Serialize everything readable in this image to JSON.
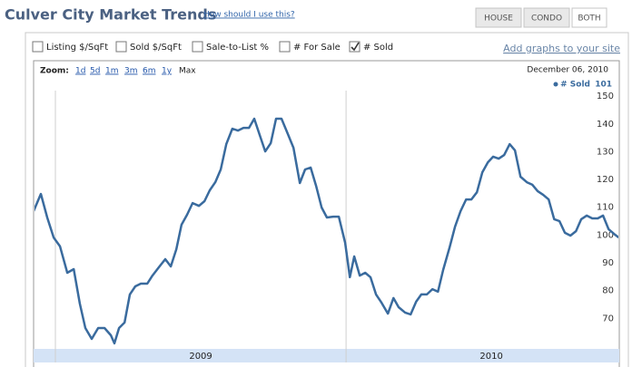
{
  "header": {
    "title": "Culver City Market Trends",
    "help_link": "How should I use this?",
    "tabs": [
      "HOUSE",
      "CONDO",
      "BOTH"
    ],
    "selected_tab": 2
  },
  "options": {
    "checkboxes": [
      {
        "label": "Listing $/SqFt",
        "checked": false
      },
      {
        "label": "Sold $/SqFt",
        "checked": false
      },
      {
        "label": "Sale-to-List %",
        "checked": false
      },
      {
        "label": "# For Sale",
        "checked": false
      },
      {
        "label": "# Sold",
        "checked": true
      }
    ],
    "embed_link": "Add graphs to your site"
  },
  "chart_data": {
    "type": "line",
    "zoom_label": "Zoom:",
    "zoom_options": [
      "1d",
      "5d",
      "1m",
      "3m",
      "6m",
      "1y",
      "Max"
    ],
    "date": "December 06, 2010",
    "current_value": 101,
    "x": [
      2008.925,
      2008.95,
      2008.972,
      2008.994,
      2009.016,
      2009.041,
      2009.063,
      2009.084,
      2009.103,
      2009.125,
      2009.147,
      2009.169,
      2009.191,
      2009.203,
      2009.219,
      2009.238,
      2009.256,
      2009.275,
      2009.294,
      2009.316,
      2009.334,
      2009.356,
      2009.378,
      2009.397,
      2009.416,
      2009.434,
      2009.453,
      2009.472,
      2009.494,
      2009.513,
      2009.531,
      2009.55,
      2009.569,
      2009.588,
      2009.609,
      2009.628,
      2009.647,
      2009.666,
      2009.684,
      2009.703,
      2009.722,
      2009.741,
      2009.759,
      2009.778,
      2009.8,
      2009.819,
      2009.841,
      2009.859,
      2009.878,
      2009.897,
      2009.916,
      2009.934,
      2009.956,
      2009.975,
      2009.997,
      2010.013,
      2010.028,
      2010.047,
      2010.066,
      2010.084,
      2010.103,
      2010.122,
      2010.144,
      2010.163,
      2010.181,
      2010.203,
      2010.222,
      2010.241,
      2010.259,
      2010.278,
      2010.297,
      2010.316,
      2010.334,
      2010.356,
      2010.375,
      2010.394,
      2010.413,
      2010.431,
      2010.45,
      2010.469,
      2010.488,
      2010.506,
      2010.525,
      2010.544,
      2010.563,
      2010.581,
      2010.6,
      2010.622,
      2010.641,
      2010.659,
      2010.678,
      2010.697,
      2010.716,
      2010.734,
      2010.753,
      2010.772,
      2010.791,
      2010.809,
      2010.828,
      2010.847,
      2010.866,
      2010.884,
      2010.903,
      2010.922,
      2010.938
    ],
    "series": [
      {
        "name": "# Sold",
        "color": "#3a6b9e",
        "values": [
          108.6,
          114.8,
          106.3,
          99.1,
          95.9,
          86.4,
          87.7,
          75.3,
          66.5,
          62.6,
          66.5,
          66.5,
          63.9,
          61.0,
          66.5,
          68.5,
          78.6,
          81.5,
          82.5,
          82.5,
          85.4,
          88.4,
          91.3,
          88.7,
          94.9,
          103.7,
          107.3,
          111.5,
          110.5,
          112.2,
          116.1,
          119.0,
          123.6,
          132.7,
          138.3,
          137.6,
          138.6,
          138.6,
          141.9,
          136.0,
          130.1,
          133.1,
          141.9,
          141.9,
          136.3,
          131.4,
          118.7,
          123.6,
          124.3,
          117.7,
          109.9,
          106.3,
          106.6,
          106.6,
          97.2,
          84.8,
          92.3,
          85.4,
          86.4,
          84.8,
          78.6,
          75.6,
          71.7,
          77.3,
          74.0,
          72.1,
          71.4,
          76.0,
          78.6,
          78.6,
          80.5,
          79.6,
          87.4,
          95.5,
          103.0,
          108.6,
          112.8,
          112.8,
          115.4,
          122.6,
          126.2,
          128.2,
          127.5,
          128.8,
          132.7,
          130.5,
          121.0,
          119.0,
          118.1,
          115.8,
          114.5,
          112.8,
          105.7,
          105.0,
          100.8,
          99.8,
          101.4,
          105.7,
          107.0,
          106.0,
          106.0,
          107.0,
          102.1,
          100.4,
          99.1
        ]
      }
    ],
    "xlim": [
      2008.925,
      2010.94
    ],
    "xticks": [
      {
        "value": 2009.5,
        "label": "2009"
      },
      {
        "value": 2010.5,
        "label": "2010"
      }
    ],
    "xgrid": [
      2009,
      2010
    ],
    "ylim": [
      59,
      152
    ],
    "yticks": [
      70,
      80,
      90,
      100,
      110,
      120,
      130,
      140,
      150
    ]
  }
}
